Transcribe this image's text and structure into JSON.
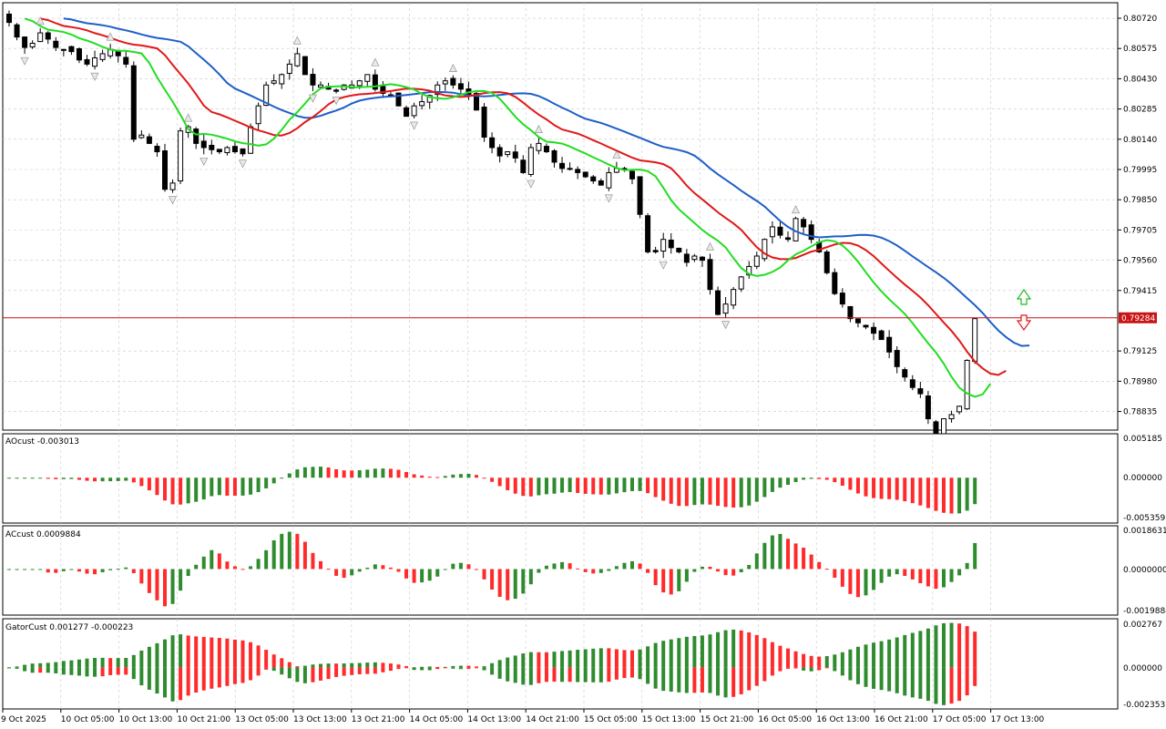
{
  "symbol_price_chart": {
    "current_price": "0.79284",
    "price_axis_labels": [
      "0.80720",
      "0.80575",
      "0.80430",
      "0.80285",
      "0.80140",
      "0.79995",
      "0.79850",
      "0.79705",
      "0.79560",
      "0.79415",
      "0.79125",
      "0.78980",
      "0.78835"
    ],
    "y_range": [
      0.7875,
      0.8079
    ],
    "price_line_color": "#c81414"
  },
  "ao_panel": {
    "title": "AOcust -0.003013",
    "axis_labels": [
      "0.005185",
      "0.000000",
      "-0.005359"
    ],
    "range": [
      -0.005359,
      0.005185
    ]
  },
  "ac_panel": {
    "title": "ACcust 0.0009884",
    "axis_labels": [
      "0.0018631",
      "0.0000000",
      "-0.0019884"
    ],
    "range": [
      -0.0019884,
      0.0018631
    ]
  },
  "gator_panel": {
    "title": "GatorCust 0.001277 -0.000223",
    "axis_labels": [
      "0.002767",
      "0.000000",
      "-0.002353"
    ],
    "range": [
      -0.002353,
      0.002767
    ]
  },
  "time_axis": {
    "labels": [
      "9 Oct 2025",
      "10 Oct 05:00",
      "10 Oct 13:00",
      "10 Oct 21:00",
      "13 Oct 05:00",
      "13 Oct 13:00",
      "13 Oct 21:00",
      "14 Oct 05:00",
      "14 Oct 13:00",
      "14 Oct 21:00",
      "15 Oct 05:00",
      "15 Oct 13:00",
      "15 Oct 21:00",
      "16 Oct 05:00",
      "16 Oct 13:00",
      "16 Oct 21:00",
      "17 Oct 05:00",
      "17 Oct 13:00"
    ]
  },
  "colors": {
    "bull": "#2e8b2e",
    "bear": "#ff2a2a",
    "jaw": "#1e5fc8",
    "teeth": "#e01818",
    "lips": "#22dd22",
    "grid": "#c8c8c8"
  },
  "chart_data": {
    "type": "candlestick",
    "close_path": [
      0.807,
      0.8063,
      0.8058,
      0.806,
      0.8065,
      0.8062,
      0.8058,
      0.8057,
      0.8056,
      0.8052,
      0.805,
      0.8053,
      0.8055,
      0.8057,
      0.8054,
      0.805,
      0.8014,
      0.8016,
      0.8012,
      0.8008,
      0.799,
      0.7993,
      0.8018,
      0.802,
      0.8012,
      0.801,
      0.8009,
      0.8008,
      0.801,
      0.8008,
      0.8007,
      0.802,
      0.803,
      0.804,
      0.8042,
      0.8045,
      0.805,
      0.8055,
      0.8045,
      0.804,
      0.804,
      0.8038,
      0.8037,
      0.804,
      0.804,
      0.8042,
      0.8045,
      0.8038,
      0.8036,
      0.8035,
      0.803,
      0.8025,
      0.803,
      0.8032,
      0.8035,
      0.804,
      0.8042,
      0.804,
      0.8038,
      0.8035,
      0.8028,
      0.8015,
      0.801,
      0.8006,
      0.8008,
      0.8005,
      0.7998,
      0.801,
      0.8012,
      0.8008,
      0.8003,
      0.8,
      0.8,
      0.7998,
      0.7996,
      0.7994,
      0.7992,
      0.7998,
      0.8,
      0.8,
      0.7995,
      0.7978,
      0.796,
      0.796,
      0.7966,
      0.7962,
      0.796,
      0.7955,
      0.7958,
      0.7956,
      0.7942,
      0.793,
      0.7935,
      0.7942,
      0.7948,
      0.7953,
      0.7958,
      0.7966,
      0.7972,
      0.7968,
      0.7966,
      0.7976,
      0.7972,
      0.7966,
      0.796,
      0.795,
      0.794,
      0.7935,
      0.7928,
      0.7926,
      0.7924,
      0.7921,
      0.7918,
      0.7912,
      0.7905,
      0.79,
      0.7895,
      0.7892,
      0.788,
      0.787,
      0.788,
      0.7882,
      0.7886,
      0.7908,
      0.7928
    ]
  }
}
